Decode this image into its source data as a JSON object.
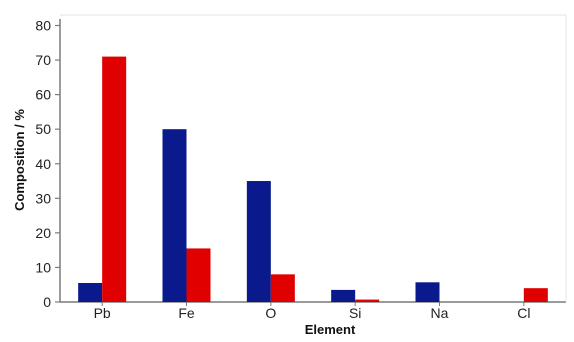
{
  "chart_data": {
    "type": "bar",
    "title": "",
    "xlabel": "Element",
    "ylabel": "Composition / %",
    "categories": [
      "Pb",
      "Fe",
      "O",
      "Si",
      "Na",
      "Cl"
    ],
    "series": [
      {
        "color": "#0a1a8c",
        "values": [
          5.5,
          50,
          35,
          3.5,
          5.7,
          0
        ]
      },
      {
        "color": "#e00000",
        "values": [
          71,
          15.5,
          8,
          0.7,
          0,
          4
        ]
      }
    ],
    "ylim": [
      0,
      80
    ],
    "yticks": [
      "0",
      "10",
      "20",
      "30",
      "40",
      "50",
      "60",
      "70",
      "80"
    ],
    "grid": false,
    "legend": "none"
  }
}
